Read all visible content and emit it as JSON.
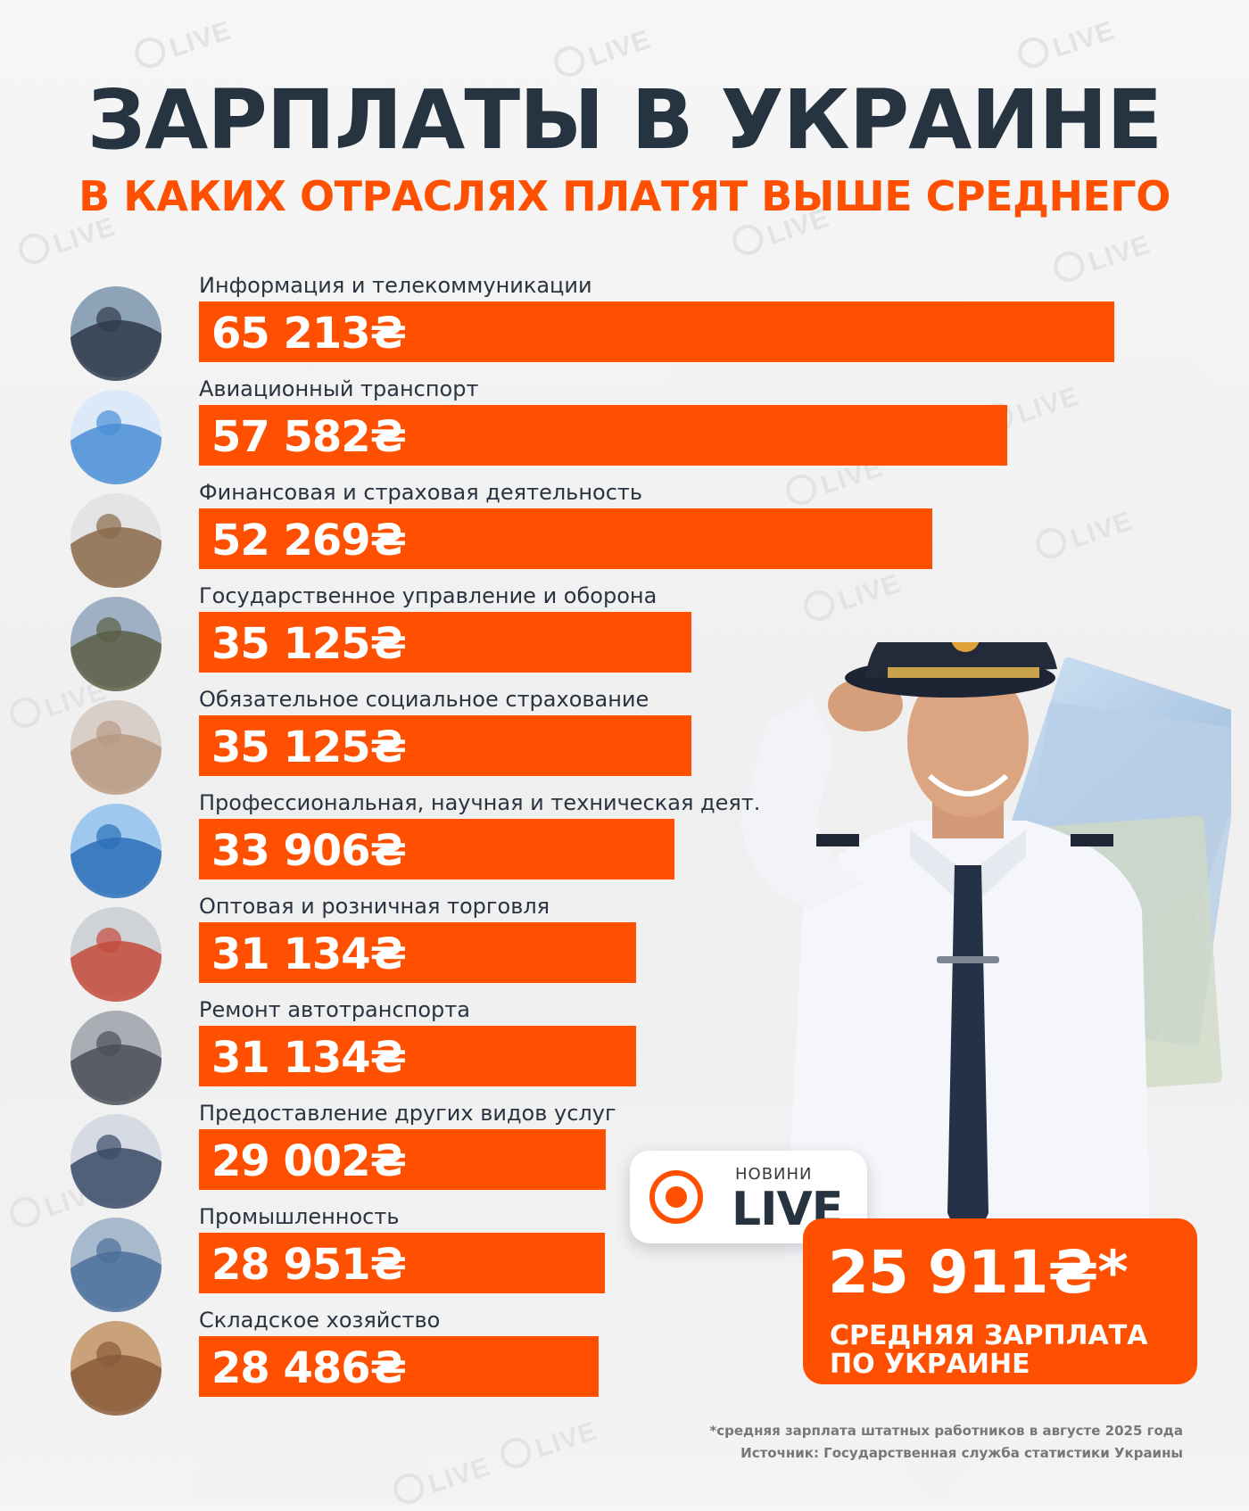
{
  "header": {
    "title": "ЗАРПЛАТЫ В УКРАИНЕ",
    "subtitle": "В КАКИХ ОТРАСЛЯХ ПЛАТЯТ ВЫШЕ СРЕДНЕГО"
  },
  "chart_data": {
    "type": "bar",
    "orientation": "horizontal",
    "currency_symbol": "₴",
    "categories": [
      "Информация и телекоммуникации",
      "Авиационный транспорт",
      "Финансовая и страховая деятельность",
      "Государственное управление и оборона",
      "Обязательное социальное страхование",
      "Профессиональная, научная и техническая деят.",
      "Оптовая и розничная торговля",
      "Ремонт автотранспорта",
      "Предоставление других видов услуг",
      "Промышленность",
      "Складское хозяйство"
    ],
    "values": [
      65213,
      57582,
      52269,
      35125,
      35125,
      33906,
      31134,
      31134,
      29002,
      28951,
      28486
    ],
    "value_labels": [
      "65 213₴",
      "57 582₴",
      "52 269₴",
      "35 125₴",
      "35 125₴",
      "33 906₴",
      "31 134₴",
      "31 134₴",
      "29 002₴",
      "28 951₴",
      "28 486₴"
    ],
    "icons": [
      "it-worker-icon",
      "airplane-icon",
      "finance-coins-icon",
      "soldiers-flag-icon",
      "social-care-icon",
      "microscope-icon",
      "shopping-cart-icon",
      "car-repair-icon",
      "business-handshake-icon",
      "industry-plant-icon",
      "warehouse-icon"
    ],
    "xlim": [
      0,
      66000
    ],
    "bar_color": "#fe5000",
    "grid": false,
    "legend": "none"
  },
  "average": {
    "value": "25 911₴*",
    "label": "СРЕДНЯЯ ЗАРПЛАТА ПО УКРАИНЕ"
  },
  "logo": {
    "small": "НОВИНИ",
    "big": "LIVE"
  },
  "footnote": {
    "line1": "*средняя зарплата штатных работников в августе 2025 года",
    "line2": "Источник: Государственная служба статистики Украины"
  },
  "colors": {
    "accent": "#fe5000",
    "title": "#263340",
    "background": "#f4f4f4"
  }
}
